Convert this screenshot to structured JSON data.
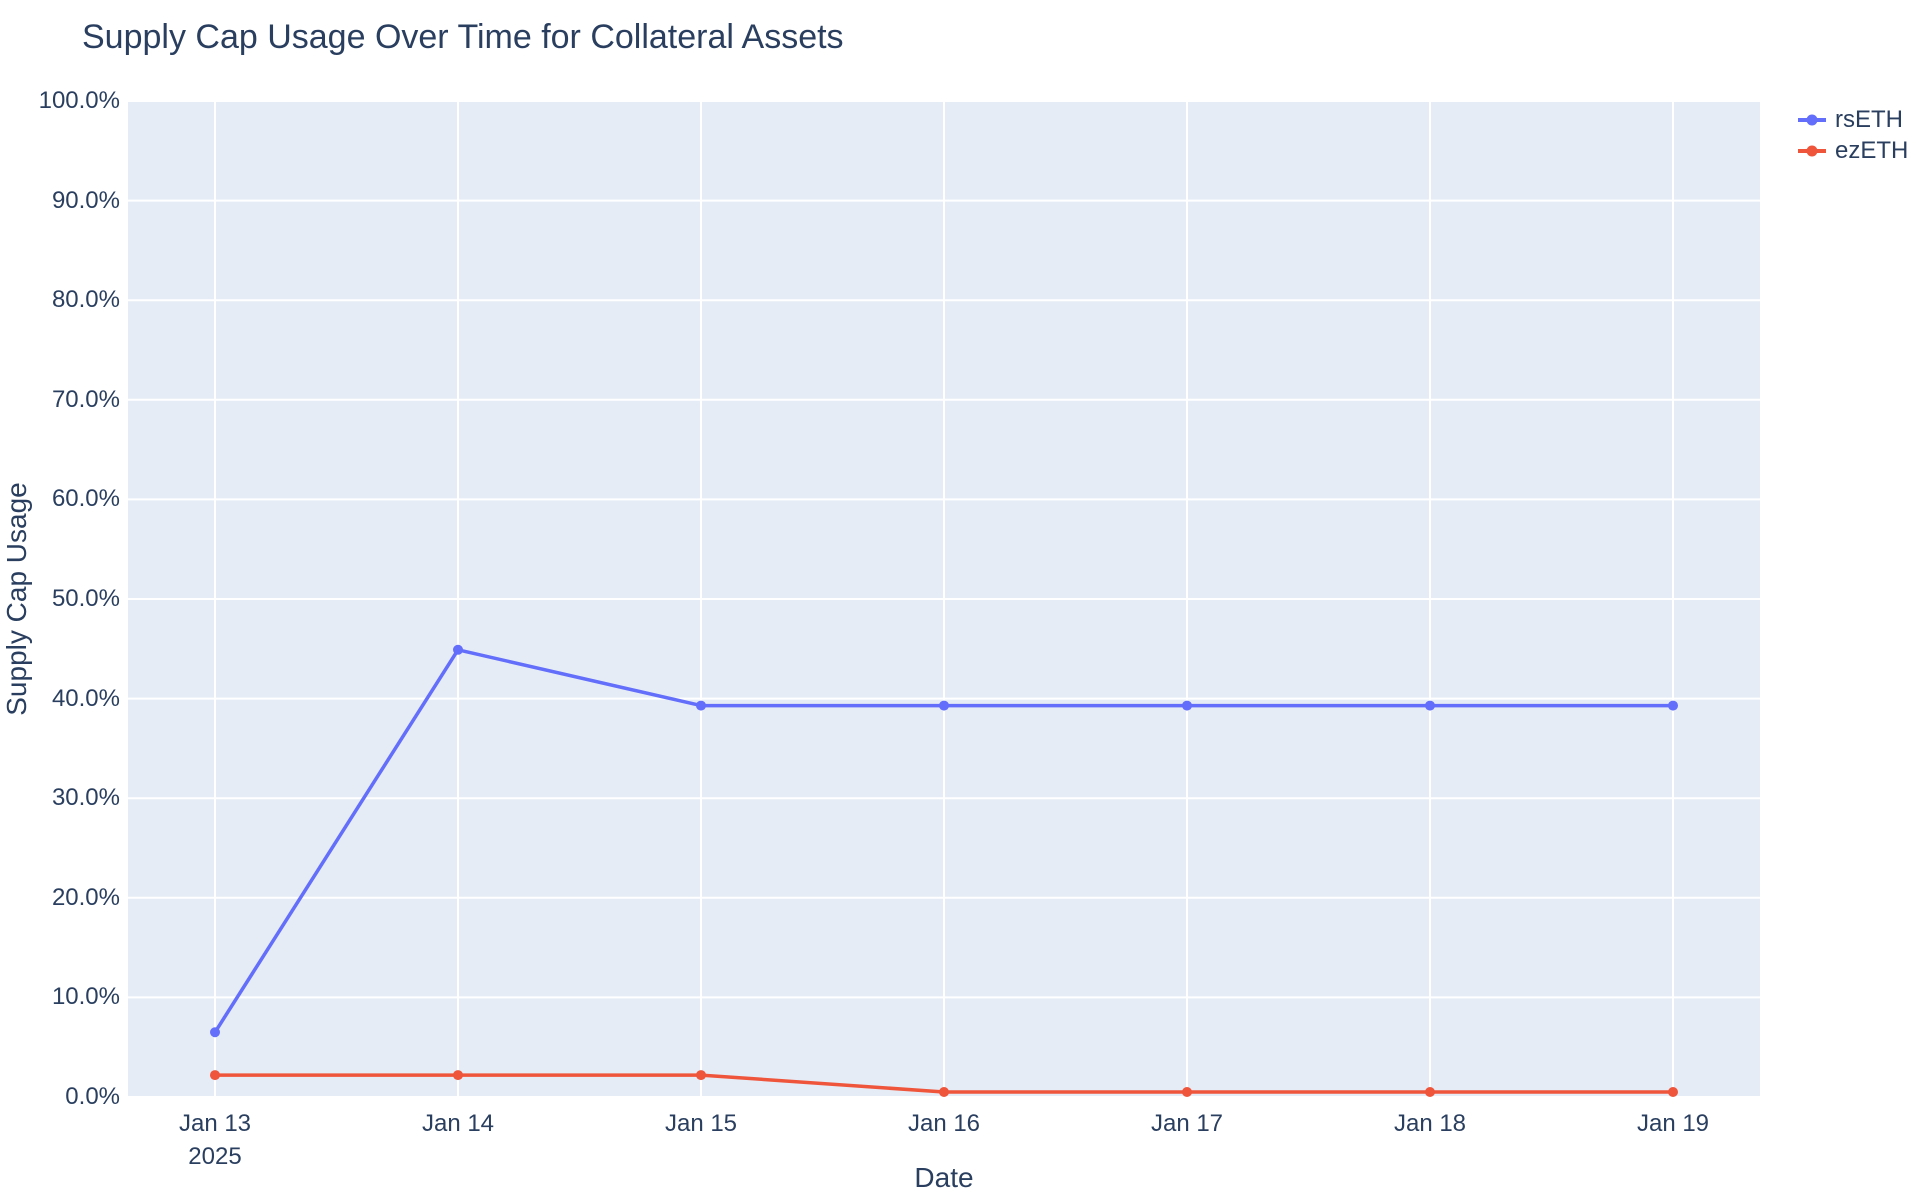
{
  "figure": {
    "background": "#ffffff"
  },
  "chart_data": {
    "type": "line",
    "title": "Supply Cap Usage Over Time for Collateral Assets",
    "xlabel": "Date",
    "ylabel": "Supply Cap Usage",
    "x_tick_labels": [
      "Jan 13\n2025",
      "Jan 14",
      "Jan 15",
      "Jan 16",
      "Jan 17",
      "Jan 18",
      "Jan 19"
    ],
    "y_ticks": [
      0,
      10,
      20,
      30,
      40,
      50,
      60,
      70,
      80,
      90,
      100
    ],
    "y_tick_labels": [
      "0.0%",
      "10.0%",
      "20.0%",
      "30.0%",
      "40.0%",
      "50.0%",
      "60.0%",
      "70.0%",
      "80.0%",
      "90.0%",
      "100.0%"
    ],
    "ylim": [
      0,
      100
    ],
    "grid": true,
    "legend_position": "top-right-outside",
    "plot_background": "#e5ecf6",
    "grid_color": "#ffffff",
    "text_color": "#2a3f5f",
    "series": [
      {
        "name": "rsETH",
        "color": "#636efa",
        "values": [
          6.5,
          44.9,
          39.3,
          39.3,
          39.3,
          39.3,
          39.3
        ]
      },
      {
        "name": "ezETH",
        "color": "#ef553b",
        "values": [
          2.2,
          2.2,
          2.2,
          0.5,
          0.5,
          0.5,
          0.5
        ]
      }
    ]
  }
}
